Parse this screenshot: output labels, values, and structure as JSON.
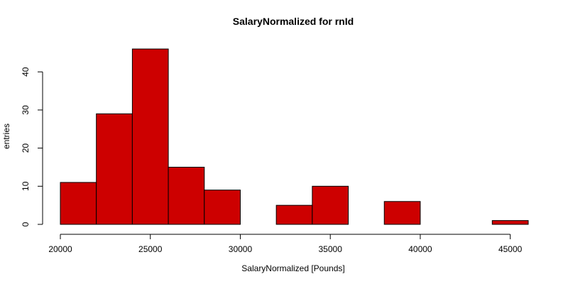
{
  "chart_data": {
    "type": "bar",
    "title": "SalaryNormalized for rnId",
    "xlabel": "SalaryNormalized [Pounds]",
    "ylabel": "entries",
    "bin_edges": [
      20000,
      22000,
      24000,
      26000,
      28000,
      30000,
      32000,
      34000,
      36000,
      38000,
      40000,
      42000,
      44000,
      46000
    ],
    "values": [
      11,
      29,
      46,
      15,
      9,
      0,
      5,
      10,
      0,
      6,
      0,
      0,
      1
    ],
    "xlim": [
      20000,
      46000
    ],
    "ylim": [
      0,
      46
    ],
    "x_ticks": [
      20000,
      25000,
      30000,
      35000,
      40000,
      45000
    ],
    "y_ticks": [
      0,
      10,
      20,
      30,
      40
    ],
    "bar_color": "#CD0000",
    "grid": false
  }
}
